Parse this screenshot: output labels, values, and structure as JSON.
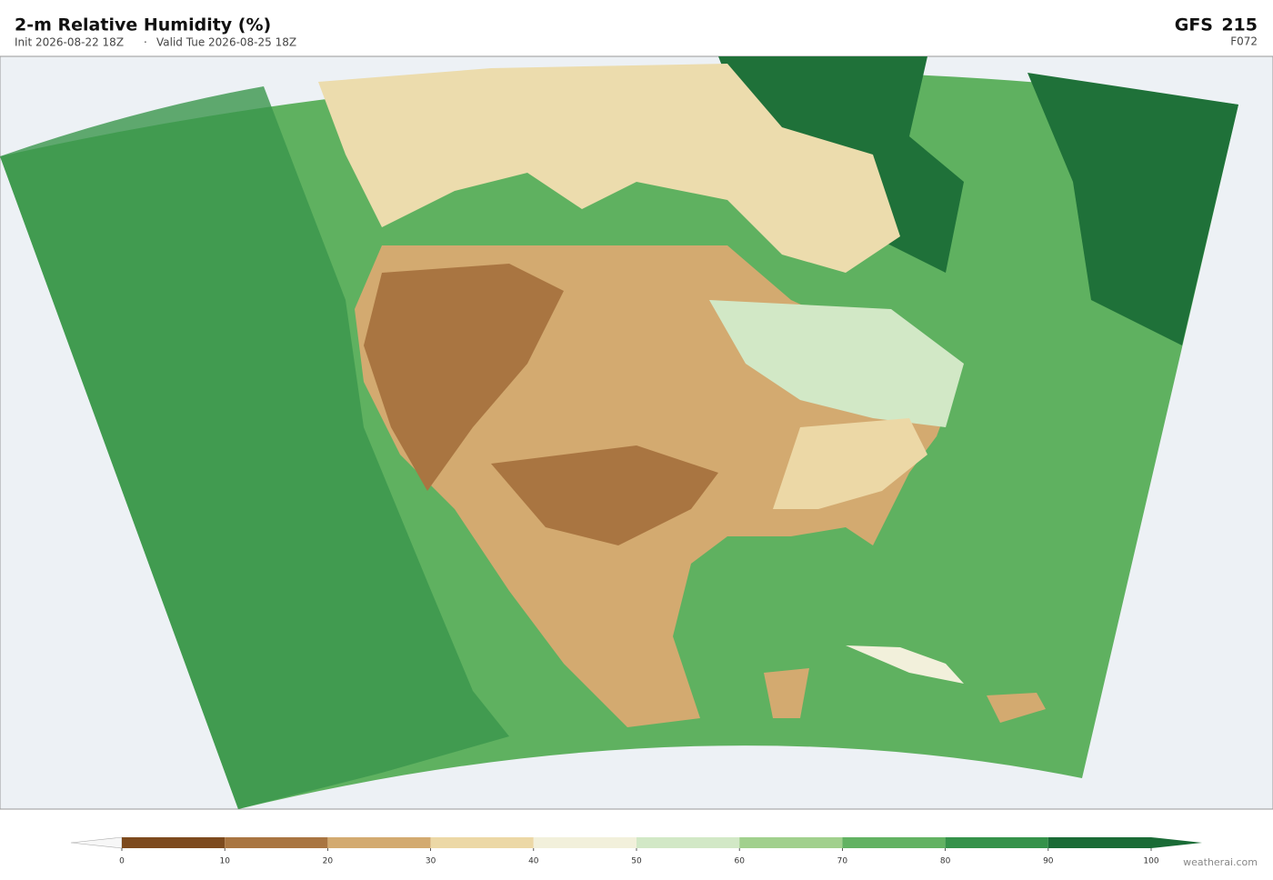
{
  "header": {
    "title": "2-m Relative Humidity  (%)",
    "init": "Init 2026-08-22 18Z",
    "separator": "·",
    "valid": "Valid Tue 2026-08-25 18Z",
    "model": "GFS",
    "grid": "215",
    "forecast_hour": "F072"
  },
  "colorbar": {
    "lim": [
      0,
      100
    ],
    "ticks": [
      0,
      10,
      20,
      30,
      40,
      50,
      60,
      70,
      80,
      90,
      100
    ],
    "colors": [
      "#7d4a1e",
      "#a97541",
      "#d3aa70",
      "#ecd8a6",
      "#f2f0db",
      "#d2e8c6",
      "#a1d08d",
      "#62b262",
      "#35924a",
      "#1a6b36"
    ]
  },
  "footer": {
    "credit": "weatherai.com"
  }
}
